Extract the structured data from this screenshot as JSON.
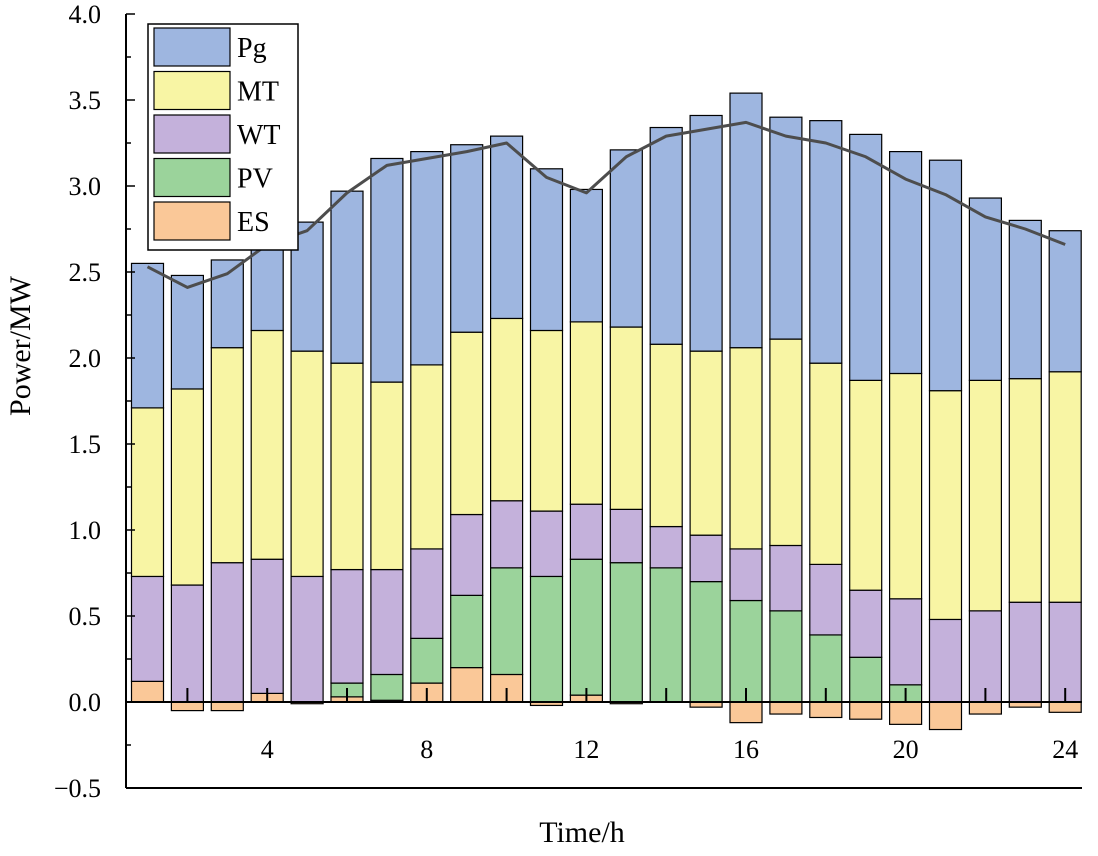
{
  "chart_data": {
    "type": "bar",
    "stacked": true,
    "xlabel": "Time/h",
    "ylabel": "Power/MW",
    "ylim": [
      -0.5,
      4.0
    ],
    "yticks": [
      "4.0",
      "3.5",
      "3.0",
      "2.5",
      "2.0",
      "1.5",
      "1.0",
      "0.5",
      "0.0",
      "−0.5"
    ],
    "ytick_values": [
      4.0,
      3.5,
      3.0,
      2.5,
      2.0,
      1.5,
      1.0,
      0.5,
      0.0,
      -0.5
    ],
    "xticks": [
      "4",
      "8",
      "12",
      "16",
      "20",
      "24"
    ],
    "xtick_values": [
      4,
      8,
      12,
      16,
      20,
      24
    ],
    "hours": [
      1,
      2,
      3,
      4,
      5,
      6,
      7,
      8,
      9,
      10,
      11,
      12,
      13,
      14,
      15,
      16,
      17,
      18,
      19,
      20,
      21,
      22,
      23,
      24
    ],
    "legend_position": "top-left",
    "series": [
      {
        "name": "ES",
        "color": "#FAC898",
        "values": [
          0.12,
          -0.05,
          -0.05,
          0.05,
          -0.01,
          0.03,
          0.01,
          0.11,
          0.2,
          0.16,
          -0.02,
          0.04,
          -0.01,
          0.0,
          -0.03,
          -0.12,
          -0.07,
          -0.09,
          -0.1,
          -0.13,
          -0.16,
          -0.07,
          -0.03,
          -0.06
        ]
      },
      {
        "name": "PV",
        "color": "#9BD39B",
        "values": [
          0,
          0,
          0,
          0,
          0,
          0.08,
          0.15,
          0.26,
          0.42,
          0.62,
          0.73,
          0.79,
          0.81,
          0.78,
          0.7,
          0.59,
          0.53,
          0.39,
          0.26,
          0.1,
          0,
          0,
          0,
          0
        ]
      },
      {
        "name": "WT",
        "color": "#C4B1DB",
        "values": [
          0.61,
          0.68,
          0.81,
          0.78,
          0.73,
          0.66,
          0.61,
          0.52,
          0.47,
          0.39,
          0.38,
          0.32,
          0.31,
          0.24,
          0.27,
          0.3,
          0.38,
          0.41,
          0.39,
          0.5,
          0.48,
          0.53,
          0.58,
          0.58
        ]
      },
      {
        "name": "MT",
        "color": "#F8F5A4",
        "values": [
          0.98,
          1.14,
          1.25,
          1.33,
          1.31,
          1.2,
          1.09,
          1.07,
          1.06,
          1.06,
          1.05,
          1.06,
          1.06,
          1.06,
          1.07,
          1.17,
          1.2,
          1.17,
          1.22,
          1.31,
          1.33,
          1.34,
          1.3,
          1.34
        ]
      },
      {
        "name": "Pg",
        "color": "#9EB6E0",
        "values": [
          0.84,
          0.66,
          0.51,
          0.52,
          0.75,
          1.0,
          1.3,
          1.24,
          1.09,
          1.06,
          0.94,
          0.77,
          1.03,
          1.26,
          1.37,
          1.48,
          1.29,
          1.41,
          1.43,
          1.29,
          1.34,
          1.06,
          0.92,
          0.82
        ]
      }
    ],
    "load_line": {
      "color": "#4D4D4D",
      "values": [
        2.53,
        2.41,
        2.49,
        2.66,
        2.74,
        2.96,
        3.12,
        3.16,
        3.2,
        3.25,
        3.05,
        2.96,
        3.17,
        3.29,
        3.33,
        3.37,
        3.29,
        3.25,
        3.17,
        3.04,
        2.95,
        2.82,
        2.75,
        2.66
      ]
    }
  }
}
